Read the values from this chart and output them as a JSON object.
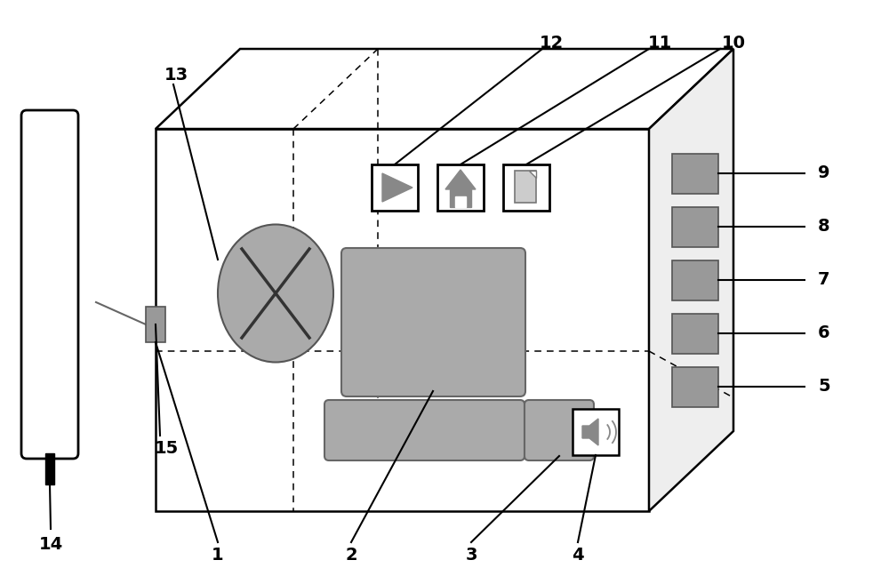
{
  "bg_color": "#ffffff",
  "box_color": "#000000",
  "gray_color": "#999999",
  "light_gray": "#bbbbbb",
  "dark_gray": "#888888",
  "label_fontsize": 14,
  "label_fontweight": "bold",
  "lw": 1.8
}
